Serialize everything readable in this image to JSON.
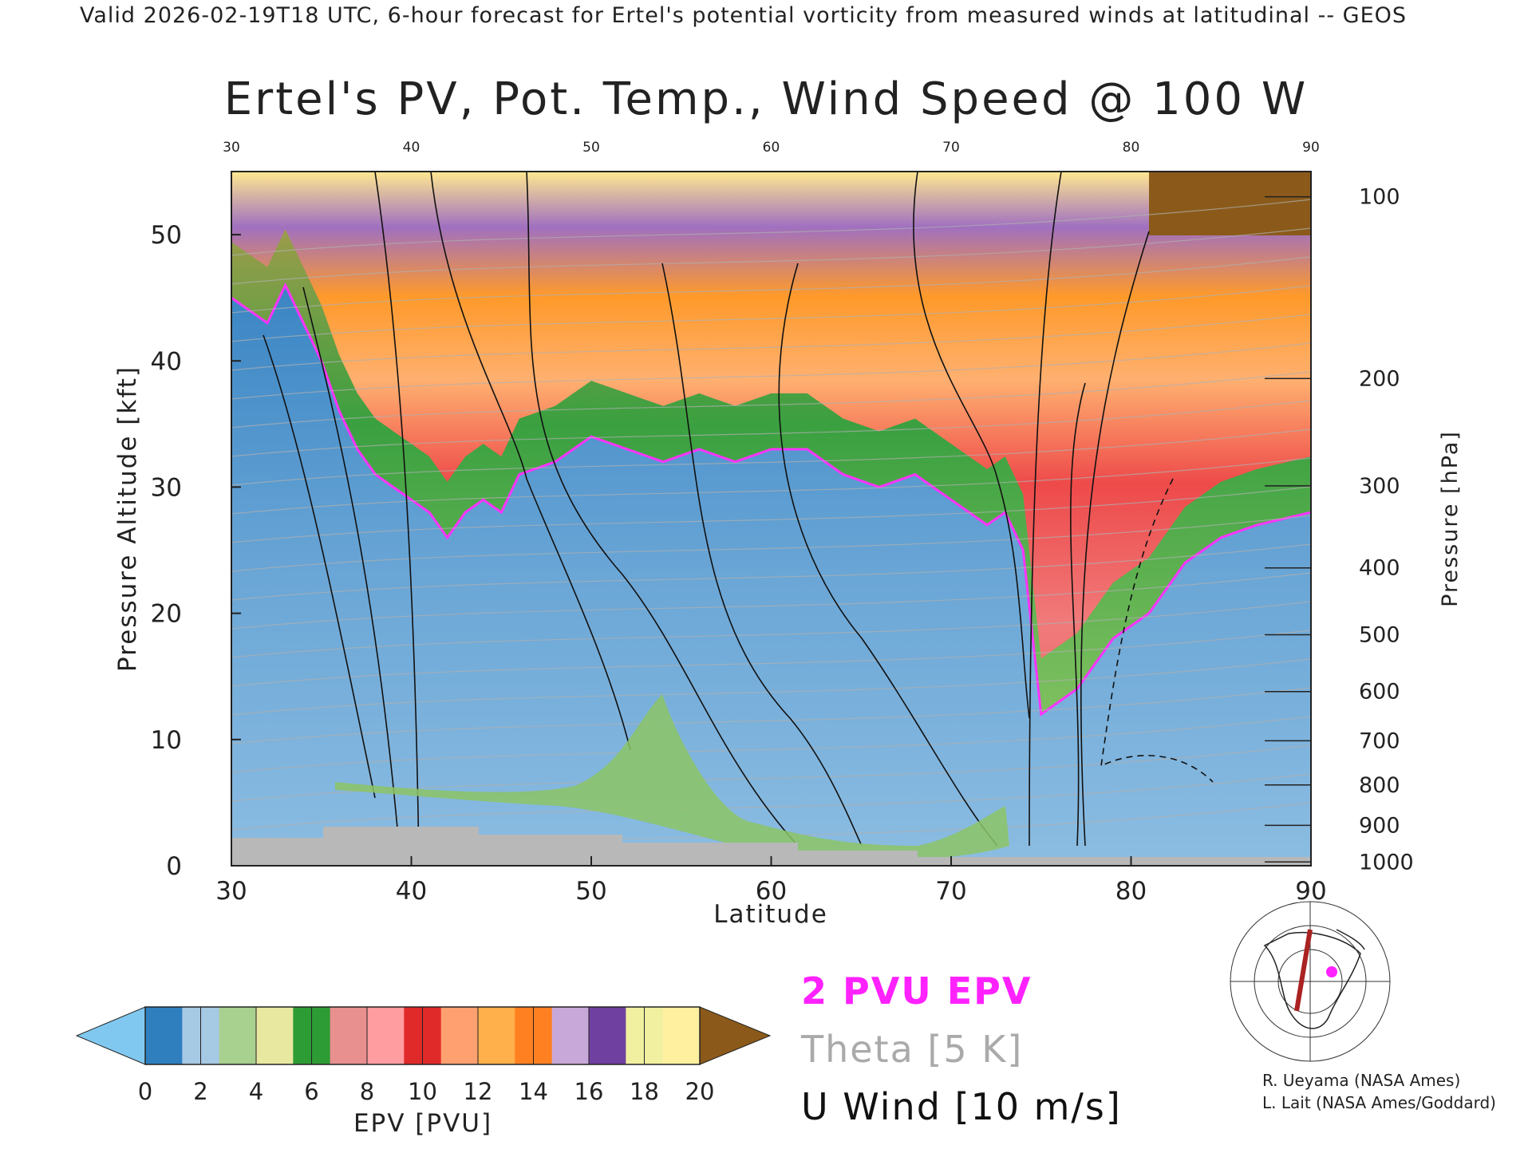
{
  "header": "Valid 2026-02-19T18 UTC, 6-hour forecast for Ertel's potential vorticity from measured winds at latitudinal -- GEOS",
  "chart_data": {
    "type": "heatmap",
    "title": "Ertel's PV, Pot. Temp., Wind Speed @ 100 W",
    "xlabel": "Latitude",
    "ylabel": "Pressure Altitude [kft]",
    "ylabel_right": "Pressure [hPa]",
    "xlim": [
      30,
      90
    ],
    "ylim": [
      0,
      55
    ],
    "x_ticks": [
      "30",
      "40",
      "50",
      "60",
      "70",
      "80",
      "90"
    ],
    "y_ticks": [
      "0",
      "10",
      "20",
      "30",
      "40",
      "50"
    ],
    "pressure_ticks": [
      {
        "label": "100",
        "kft": 53
      },
      {
        "label": "200",
        "kft": 38.6
      },
      {
        "label": "300",
        "kft": 30.1
      },
      {
        "label": "400",
        "kft": 23.6
      },
      {
        "label": "500",
        "kft": 18.3
      },
      {
        "label": "600",
        "kft": 13.8
      },
      {
        "label": "700",
        "kft": 9.9
      },
      {
        "label": "800",
        "kft": 6.4
      },
      {
        "label": "900",
        "kft": 3.2
      },
      {
        "label": "1000",
        "kft": 0.3
      }
    ],
    "tropopause_2pvu_kft": [
      [
        30,
        45
      ],
      [
        31,
        44
      ],
      [
        32,
        43
      ],
      [
        33,
        46
      ],
      [
        34,
        43
      ],
      [
        35,
        40
      ],
      [
        36,
        36
      ],
      [
        37,
        33
      ],
      [
        38,
        31
      ],
      [
        39,
        30
      ],
      [
        40,
        29
      ],
      [
        41,
        28
      ],
      [
        42,
        26
      ],
      [
        43,
        28
      ],
      [
        44,
        29
      ],
      [
        45,
        28
      ],
      [
        46,
        31
      ],
      [
        48,
        32
      ],
      [
        50,
        34
      ],
      [
        52,
        33
      ],
      [
        54,
        32
      ],
      [
        56,
        33
      ],
      [
        58,
        32
      ],
      [
        60,
        33
      ],
      [
        62,
        33
      ],
      [
        64,
        31
      ],
      [
        66,
        30
      ],
      [
        68,
        31
      ],
      [
        70,
        29
      ],
      [
        72,
        27
      ],
      [
        73,
        28
      ],
      [
        74,
        25
      ],
      [
        75,
        12
      ],
      [
        77,
        14
      ],
      [
        79,
        18
      ],
      [
        81,
        20
      ],
      [
        83,
        24
      ],
      [
        85,
        26
      ],
      [
        87,
        27
      ],
      [
        90,
        28
      ]
    ],
    "colorbar": {
      "label": "EPV [PVU]",
      "ticks": [
        "0",
        "2",
        "4",
        "6",
        "8",
        "10",
        "12",
        "14",
        "16",
        "18",
        "20"
      ],
      "colors": [
        "#80c8f0",
        "#2f7fbf",
        "#a6c9e4",
        "#a8d08e",
        "#e8e8a0",
        "#2e9c34",
        "#e89090",
        "#ff9da0",
        "#e02a2a",
        "#ffa070",
        "#ffb04a",
        "#ff8020",
        "#c8a8d8",
        "#7040a0",
        "#f0f0a0",
        "#fff0a0",
        "#8b5a1a"
      ]
    }
  },
  "legend": {
    "epv": "2 PVU EPV",
    "theta": "Theta [5 K]",
    "uwind": "U Wind [10 m/s]"
  },
  "credits": {
    "line1": "R. Ueyama (NASA Ames)",
    "line2": "L. Lait (NASA Ames/Goddard)"
  }
}
